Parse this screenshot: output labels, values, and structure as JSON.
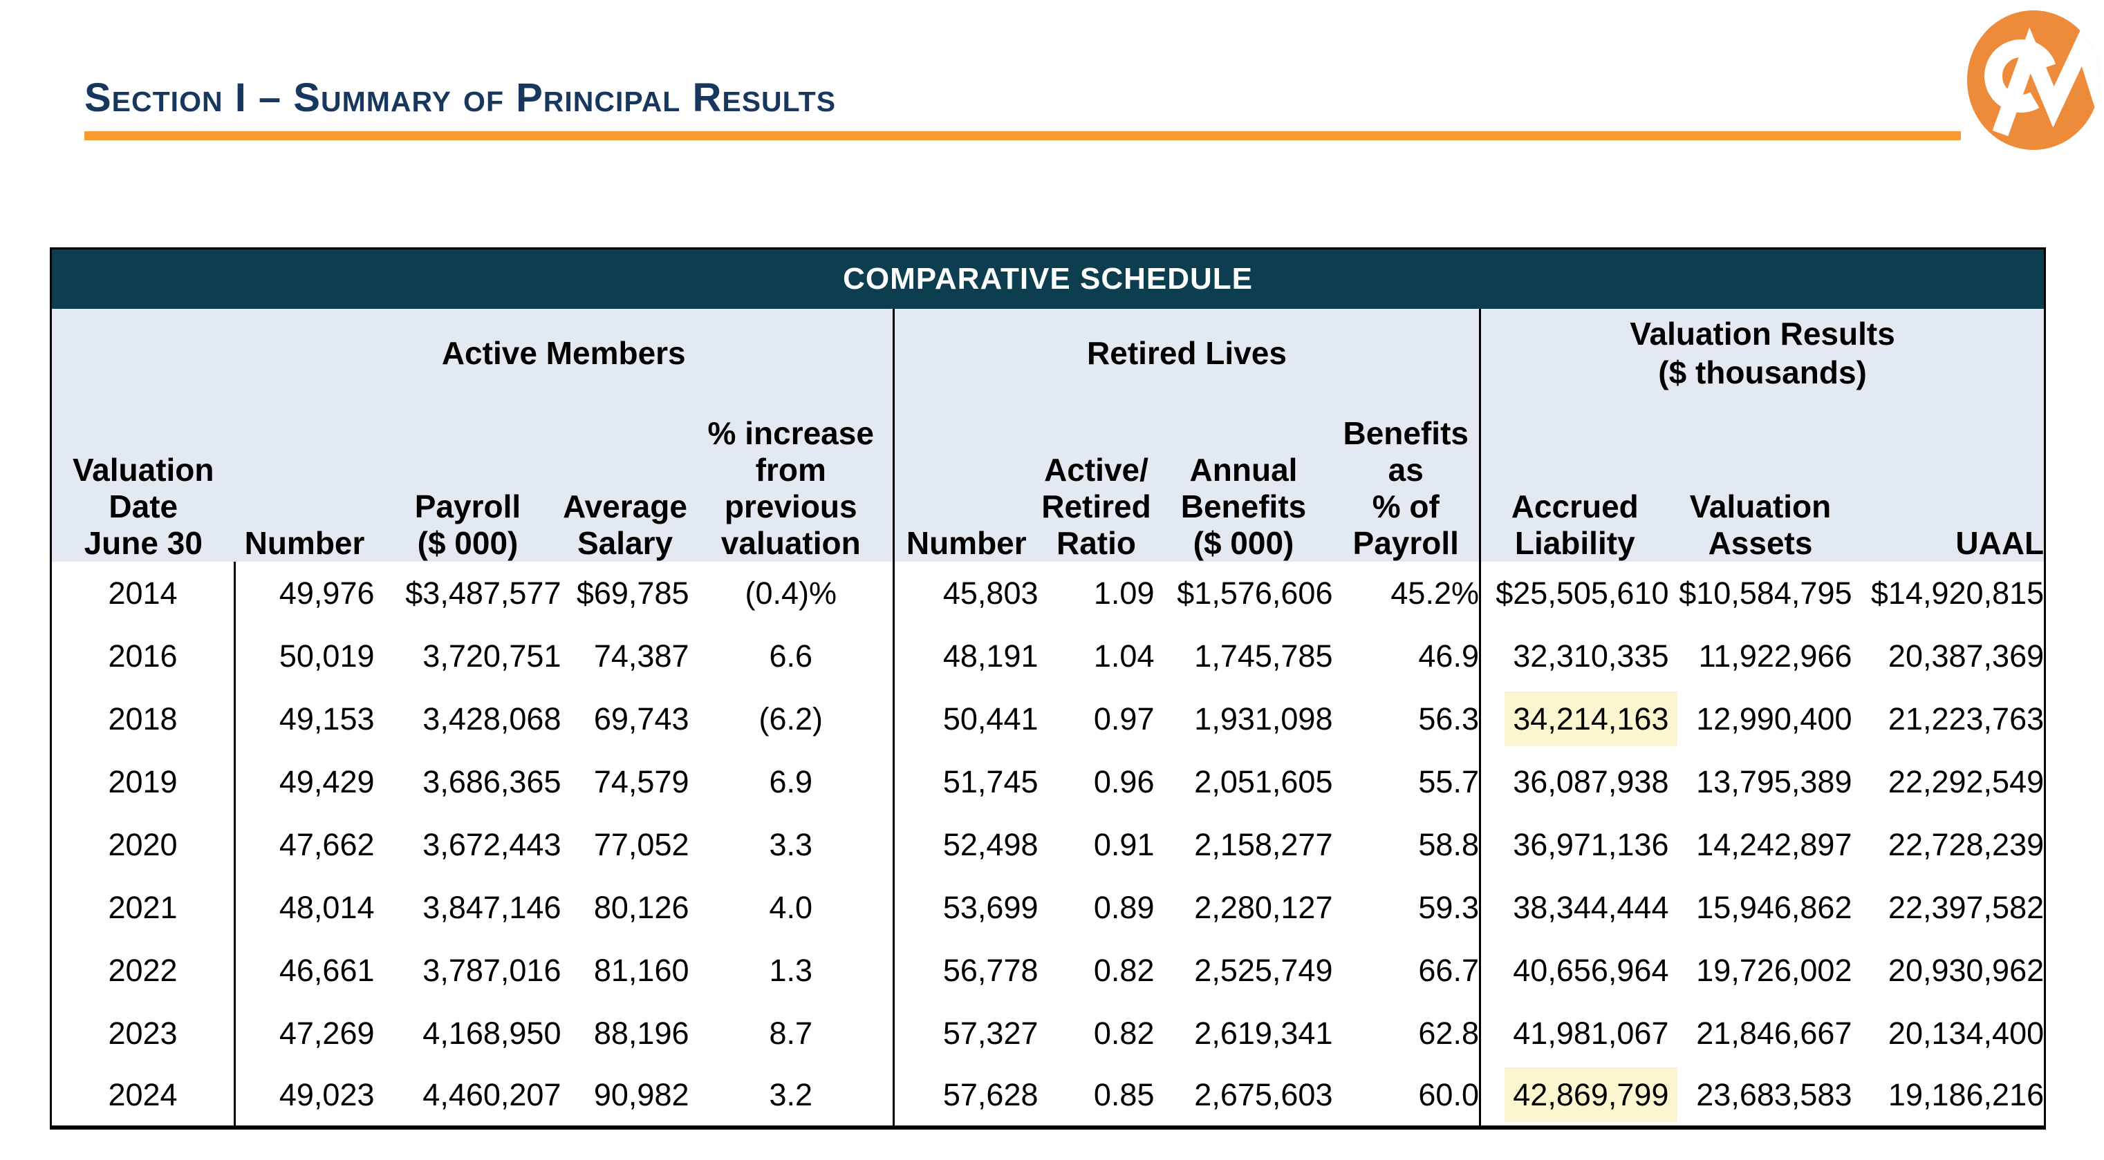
{
  "page": {
    "title": "Section I – Summary of Principal Results"
  },
  "logo": {
    "monogram": "CM"
  },
  "colors": {
    "accent_orange": "#f79b30",
    "logo_orange": "#ee8b3a",
    "banner_teal": "#0d3e4f",
    "header_fill_blue": "#e2e9f1",
    "highlight_yellow": "#fbf6d0",
    "title_navy": "#17375e"
  },
  "table": {
    "title": "COMPARATIVE SCHEDULE",
    "row_header": "Valuation\nDate\nJune 30",
    "groups": [
      {
        "label": "Active Members"
      },
      {
        "label": "Retired Lives"
      },
      {
        "label": "Valuation Results\n($ thousands)"
      }
    ],
    "columns": [
      "Number",
      "Payroll\n($ 000)",
      "Average\nSalary",
      "% increase\nfrom\nprevious\nvaluation",
      "Number",
      "Active/\nRetired\nRatio",
      "Annual\nBenefits\n($ 000)",
      "Benefits\nas\n% of\nPayroll",
      "Accrued\nLiability",
      "Valuation\nAssets",
      "UAAL"
    ],
    "rows": [
      {
        "year": "2014",
        "values": [
          "49,976",
          "$3,487,577",
          "$69,785",
          "(0.4)%",
          "45,803",
          "1.09",
          "$1,576,606",
          "45.2%",
          "$25,505,610",
          "$10,584,795",
          "$14,920,815"
        ]
      },
      {
        "year": "2016",
        "values": [
          "50,019",
          "3,720,751",
          "74,387",
          "6.6",
          "48,191",
          "1.04",
          "1,745,785",
          "46.9",
          "32,310,335",
          "11,922,966",
          "20,387,369"
        ]
      },
      {
        "year": "2018",
        "values": [
          "49,153",
          "3,428,068",
          "69,743",
          "(6.2)",
          "50,441",
          "0.97",
          "1,931,098",
          "56.3",
          {
            "value": "34,214,163",
            "highlight": true
          },
          "12,990,400",
          "21,223,763"
        ]
      },
      {
        "year": "2019",
        "values": [
          "49,429",
          "3,686,365",
          "74,579",
          "6.9",
          "51,745",
          "0.96",
          "2,051,605",
          "55.7",
          "36,087,938",
          "13,795,389",
          "22,292,549"
        ]
      },
      {
        "year": "2020",
        "values": [
          "47,662",
          "3,672,443",
          "77,052",
          "3.3",
          "52,498",
          "0.91",
          "2,158,277",
          "58.8",
          "36,971,136",
          "14,242,897",
          "22,728,239"
        ]
      },
      {
        "year": "2021",
        "values": [
          "48,014",
          "3,847,146",
          "80,126",
          "4.0",
          "53,699",
          "0.89",
          "2,280,127",
          "59.3",
          "38,344,444",
          "15,946,862",
          "22,397,582"
        ]
      },
      {
        "year": "2022",
        "values": [
          "46,661",
          "3,787,016",
          "81,160",
          "1.3",
          "56,778",
          "0.82",
          "2,525,749",
          "66.7",
          "40,656,964",
          "19,726,002",
          "20,930,962"
        ]
      },
      {
        "year": "2023",
        "values": [
          "47,269",
          "4,168,950",
          "88,196",
          "8.7",
          "57,327",
          "0.82",
          "2,619,341",
          "62.8",
          "41,981,067",
          "21,846,667",
          "20,134,400"
        ]
      },
      {
        "year": "2024",
        "values": [
          "49,023",
          "4,460,207",
          "90,982",
          "3.2",
          "57,628",
          "0.85",
          "2,675,603",
          "60.0",
          {
            "value": "42,869,799",
            "highlight": true
          },
          "23,683,583",
          "19,186,216"
        ]
      }
    ]
  }
}
